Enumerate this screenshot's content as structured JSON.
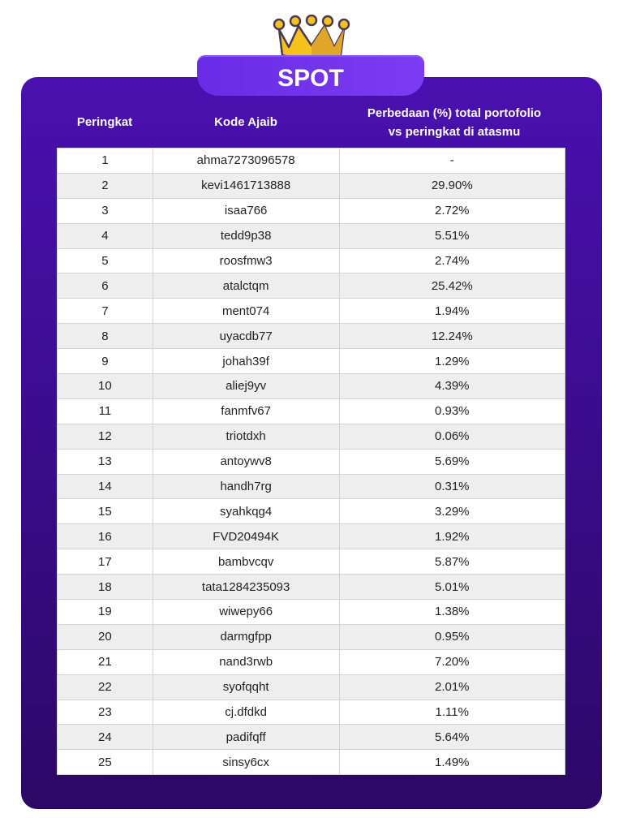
{
  "title": "SPOT",
  "colors": {
    "card": "#4a10b0",
    "tab": "#6a2be6",
    "crown": "#f5c21b"
  },
  "headers": {
    "rank": "Peringkat",
    "code": "Kode Ajaib",
    "diff_line1": "Perbedaan (%) total portofolio",
    "diff_line2": "vs peringkat di atasmu"
  },
  "rows": [
    {
      "rank": "1",
      "code": "ahma7273096578",
      "diff": "-"
    },
    {
      "rank": "2",
      "code": "kevi1461713888",
      "diff": "29.90%"
    },
    {
      "rank": "3",
      "code": "isaa766",
      "diff": "2.72%"
    },
    {
      "rank": "4",
      "code": "tedd9p38",
      "diff": "5.51%"
    },
    {
      "rank": "5",
      "code": "roosfmw3",
      "diff": "2.74%"
    },
    {
      "rank": "6",
      "code": "atalctqm",
      "diff": "25.42%"
    },
    {
      "rank": "7",
      "code": "ment074",
      "diff": "1.94%"
    },
    {
      "rank": "8",
      "code": "uyacdb77",
      "diff": "12.24%"
    },
    {
      "rank": "9",
      "code": "johah39f",
      "diff": "1.29%"
    },
    {
      "rank": "10",
      "code": "aliej9yv",
      "diff": "4.39%"
    },
    {
      "rank": "11",
      "code": "fanmfv67",
      "diff": "0.93%"
    },
    {
      "rank": "12",
      "code": "triotdxh",
      "diff": "0.06%"
    },
    {
      "rank": "13",
      "code": "antoywv8",
      "diff": "5.69%"
    },
    {
      "rank": "14",
      "code": "handh7rg",
      "diff": "0.31%"
    },
    {
      "rank": "15",
      "code": "syahkqg4",
      "diff": "3.29%"
    },
    {
      "rank": "16",
      "code": "FVD20494K",
      "diff": "1.92%"
    },
    {
      "rank": "17",
      "code": "bambvcqv",
      "diff": "5.87%"
    },
    {
      "rank": "18",
      "code": "tata1284235093",
      "diff": "5.01%"
    },
    {
      "rank": "19",
      "code": "wiwepy66",
      "diff": "1.38%"
    },
    {
      "rank": "20",
      "code": "darmgfpp",
      "diff": "0.95%"
    },
    {
      "rank": "21",
      "code": "nand3rwb",
      "diff": "7.20%"
    },
    {
      "rank": "22",
      "code": "syofqqht",
      "diff": "2.01%"
    },
    {
      "rank": "23",
      "code": "cj.dfdkd",
      "diff": "1.11%"
    },
    {
      "rank": "24",
      "code": "padifqff",
      "diff": "5.64%"
    },
    {
      "rank": "25",
      "code": "sinsy6cx",
      "diff": "1.49%"
    }
  ]
}
